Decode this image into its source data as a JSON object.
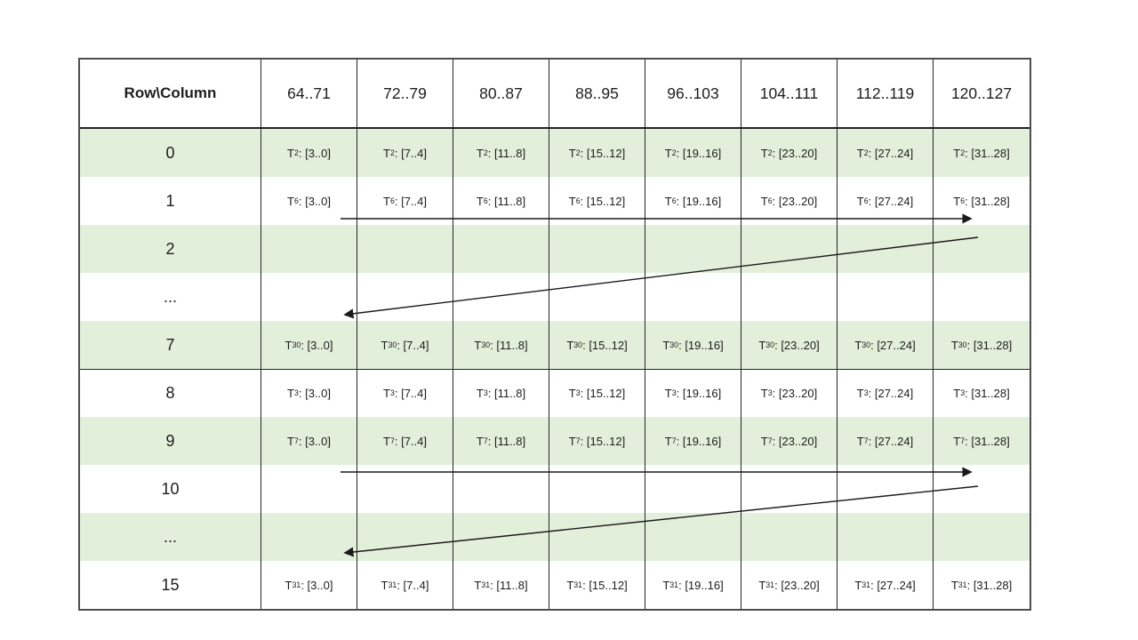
{
  "colors": {
    "row_shading": "#e2efda",
    "border": "#242424",
    "outer_border": "#4d4d4d",
    "text": "#1d1d1d",
    "arrow": "#1a1a1a",
    "background": "#ffffff"
  },
  "table": {
    "headers": [
      "Row\\Column",
      "64..71",
      "72..79",
      "80..87",
      "88..95",
      "96..103",
      "104..111",
      "112..119",
      "120..127"
    ],
    "rows": [
      {
        "label": "0",
        "shaded": true,
        "thick_top": false,
        "cells": [
          "T2: [3..0]",
          "T2: [7..4]",
          "T2: [11..8]",
          "T2: [15..12]",
          "T2: [19..16]",
          "T2: [23..20]",
          "T2: [27..24]",
          "T2: [31..28]"
        ]
      },
      {
        "label": "1",
        "shaded": false,
        "thick_top": false,
        "cells": [
          "T6: [3..0]",
          "T6: [7..4]",
          "T6: [11..8]",
          "T6: [15..12]",
          "T6: [19..16]",
          "T6: [23..20]",
          "T6: [27..24]",
          "T6: [31..28]"
        ]
      },
      {
        "label": "2",
        "shaded": true,
        "thick_top": false,
        "cells": [
          "",
          "",
          "",
          "",
          "",
          "",
          "",
          ""
        ]
      },
      {
        "label": "...",
        "shaded": false,
        "thick_top": false,
        "cells": [
          "",
          "",
          "",
          "",
          "",
          "",
          "",
          ""
        ]
      },
      {
        "label": "7",
        "shaded": true,
        "thick_top": false,
        "cells": [
          "T30: [3..0]",
          "T30: [7..4]",
          "T30: [11..8]",
          "T30: [15..12]",
          "T30: [19..16]",
          "T30: [23..20]",
          "T30: [27..24]",
          "T30: [31..28]"
        ]
      },
      {
        "label": "8",
        "shaded": false,
        "thick_top": true,
        "cells": [
          "T3: [3..0]",
          "T3: [7..4]",
          "T3: [11..8]",
          "T3: [15..12]",
          "T3: [19..16]",
          "T3: [23..20]",
          "T3: [27..24]",
          "T3: [31..28]"
        ]
      },
      {
        "label": "9",
        "shaded": true,
        "thick_top": false,
        "cells": [
          "T7: [3..0]",
          "T7: [7..4]",
          "T7: [11..8]",
          "T7: [15..12]",
          "T7: [19..16]",
          "T7: [23..20]",
          "T7: [27..24]",
          "T7: [31..28]"
        ]
      },
      {
        "label": "10",
        "shaded": false,
        "thick_top": false,
        "cells": [
          "",
          "",
          "",
          "",
          "",
          "",
          "",
          ""
        ]
      },
      {
        "label": "...",
        "shaded": true,
        "thick_top": false,
        "cells": [
          "",
          "",
          "",
          "",
          "",
          "",
          "",
          ""
        ]
      },
      {
        "label": "15",
        "shaded": false,
        "thick_top": false,
        "cells": [
          "T31: [3..0]",
          "T31: [7..4]",
          "T31: [11..8]",
          "T31: [15..12]",
          "T31: [19..16]",
          "T31: [23..20]",
          "T31: [27..24]",
          "T31: [31..28]"
        ]
      }
    ]
  },
  "arrows": [
    {
      "name": "wrap-arrow-row1-right",
      "direction": "right"
    },
    {
      "name": "wrap-arrow-return-to-row7",
      "direction": "down-left"
    },
    {
      "name": "wrap-arrow-row9-right",
      "direction": "right"
    },
    {
      "name": "wrap-arrow-return-to-row15",
      "direction": "down-left"
    }
  ]
}
